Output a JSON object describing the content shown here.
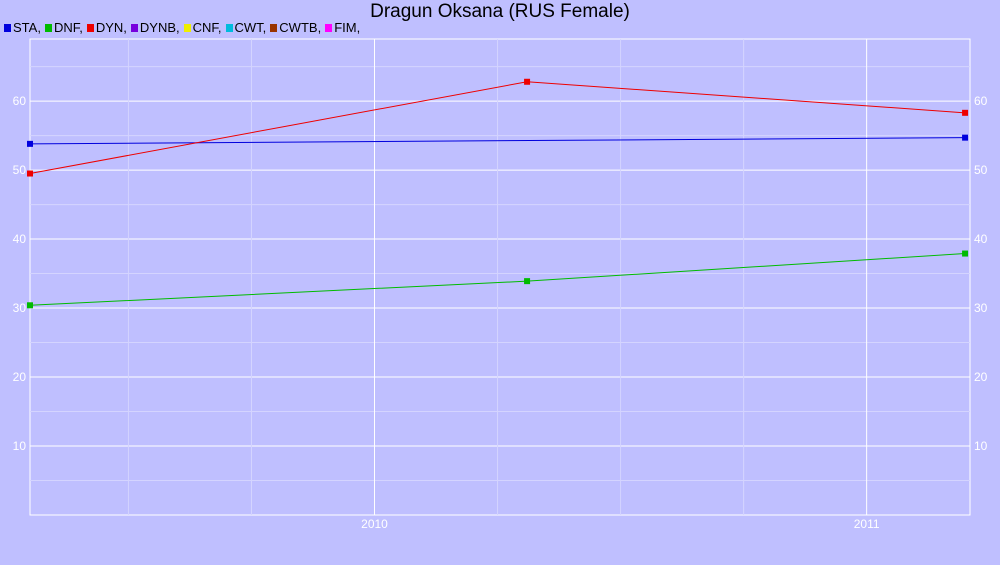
{
  "chart_data": {
    "type": "line",
    "title": "Dragun Oksana (RUS Female)",
    "legend": [
      {
        "name": "STA,",
        "color": "#0000dd"
      },
      {
        "name": "DNF,",
        "color": "#00bb00"
      },
      {
        "name": "DYN,",
        "color": "#ee0000"
      },
      {
        "name": "DYNB,",
        "color": "#7700dd"
      },
      {
        "name": "CNF,",
        "color": "#eeee00"
      },
      {
        "name": "CWT,",
        "color": "#00bbdd"
      },
      {
        "name": "CWTB,",
        "color": "#993300"
      },
      {
        "name": "FIM,",
        "color": "#ff00ff"
      }
    ],
    "x_ticks": [
      {
        "label": "2010",
        "x": 2010.0
      },
      {
        "label": "2011",
        "x": 2011.0
      }
    ],
    "xlim": [
      2009.3,
      2011.21
    ],
    "ylim": [
      0,
      69
    ],
    "y_ticks": [
      10,
      20,
      30,
      40,
      50,
      60
    ],
    "grid": true,
    "series": [
      {
        "name": "STA",
        "color": "#0000dd",
        "points": [
          [
            2009.3,
            53.8
          ],
          [
            2011.2,
            54.7
          ]
        ]
      },
      {
        "name": "DYN",
        "color": "#ee0000",
        "points": [
          [
            2009.3,
            49.5
          ],
          [
            2010.31,
            62.8
          ],
          [
            2011.2,
            58.3
          ]
        ]
      },
      {
        "name": "DNF",
        "color": "#00bb00",
        "points": [
          [
            2009.3,
            30.4
          ],
          [
            2010.31,
            33.9
          ],
          [
            2011.2,
            37.9
          ]
        ]
      }
    ]
  }
}
